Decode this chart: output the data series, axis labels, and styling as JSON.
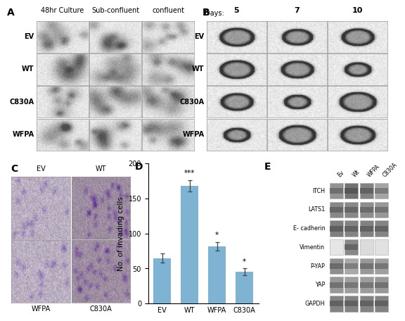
{
  "panel_labels": [
    "A",
    "B",
    "C",
    "D",
    "E"
  ],
  "bar_categories": [
    "EV",
    "WT",
    "WFPA",
    "C830A"
  ],
  "bar_values": [
    65,
    168,
    82,
    45
  ],
  "bar_errors": [
    7,
    8,
    6,
    5
  ],
  "bar_color": "#7fb3d3",
  "bar_ylabel": "No. of invading cells",
  "bar_ylim": [
    0,
    200
  ],
  "bar_yticks": [
    0,
    50,
    100,
    150,
    200
  ],
  "significance_WT": "***",
  "significance_WFPA": "*",
  "significance_C830A": "*",
  "panel_A_col_labels": [
    "48hr Culture",
    "Sub-confluent",
    "confluent"
  ],
  "panel_A_row_labels": [
    "EV",
    "WT",
    "C830A",
    "WFPA"
  ],
  "panel_B_col_labels": [
    "5",
    "7",
    "10"
  ],
  "panel_B_row_labels": [
    "EV",
    "WT",
    "C830A",
    "WFPA"
  ],
  "panel_B_days_prefix": "Days:",
  "panel_C_labels_top": [
    "EV",
    "WT"
  ],
  "panel_C_labels_bot": [
    "WFPA",
    "C830A"
  ],
  "panel_E_row_labels": [
    "ITCH",
    "LATS1",
    "E- cadherin",
    "Vimentin",
    "P-YAP",
    "YAP",
    "GAPDH"
  ],
  "panel_E_col_labels": [
    "Ev",
    "Wt",
    "WFPA",
    "C830A"
  ],
  "bg_color": "#ffffff",
  "micro_gray_light": 0.88,
  "micro_gray_dark": 0.75,
  "panel_label_fontsize": 10,
  "col_label_fontsize": 7,
  "row_label_fontsize": 7,
  "axis_label_fontsize": 7.5,
  "tick_fontsize": 7
}
